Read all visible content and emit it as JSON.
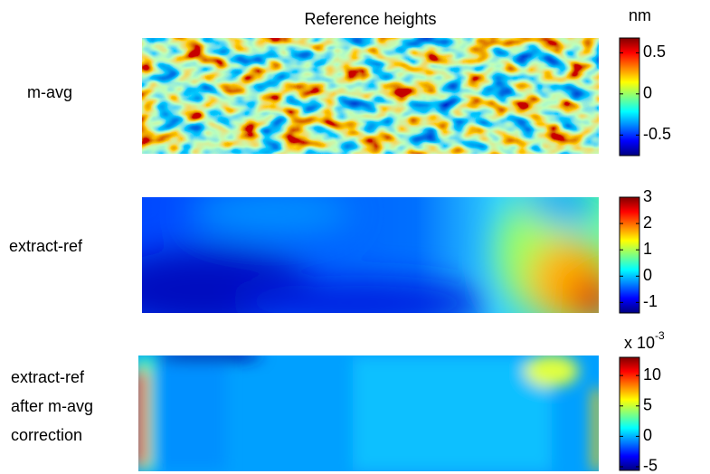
{
  "chart_data": [
    {
      "type": "heatmap",
      "title": "Reference heights",
      "label": [
        "m-avg"
      ],
      "colormap": "jet",
      "colorbar": {
        "label": "nm",
        "clim": [
          -0.75,
          0.68
        ],
        "ticks": [
          -0.5,
          0,
          0.5
        ]
      }
    },
    {
      "type": "heatmap",
      "label": [
        "extract-ref"
      ],
      "colormap": "jet",
      "colorbar": {
        "clim": [
          -1.4,
          3
        ],
        "ticks": [
          -1,
          0,
          1,
          2,
          3
        ]
      }
    },
    {
      "type": "heatmap",
      "label": [
        "extract-ref",
        "after m-avg",
        "correction"
      ],
      "colormap": "jet",
      "colorbar": {
        "label": "x 10",
        "label_exponent": "-3",
        "clim": [
          -5.6,
          13
        ],
        "ticks": [
          -5,
          0,
          5,
          10
        ]
      }
    }
  ]
}
